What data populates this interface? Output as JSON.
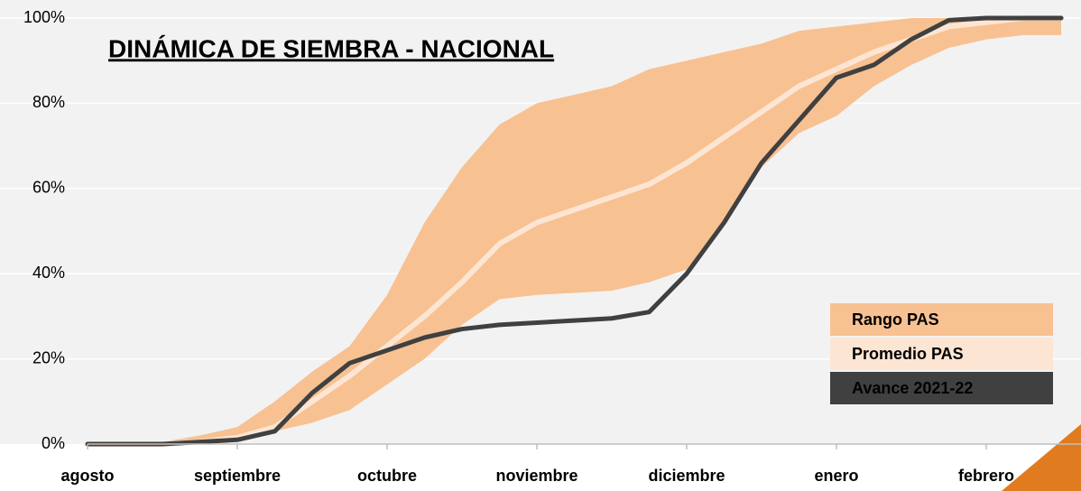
{
  "chart_data": {
    "type": "line",
    "title": "DINÁMICA DE SIEMBRA - NACIONAL",
    "categories": [
      "agosto",
      null,
      null,
      null,
      "septiembre",
      null,
      null,
      null,
      "octubre",
      null,
      null,
      null,
      "noviembre",
      null,
      null,
      null,
      "diciembre",
      null,
      null,
      null,
      "enero",
      null,
      null,
      null,
      "febrero",
      null,
      null
    ],
    "series": [
      {
        "name": "Rango PAS",
        "color": "#f8c192",
        "low": [
          0,
          0,
          0,
          0.5,
          1,
          3,
          5,
          8,
          14,
          20,
          28,
          34,
          35,
          35.5,
          36,
          38,
          41,
          52,
          65,
          73,
          77,
          84,
          89,
          93,
          95,
          96,
          96
        ],
        "high": [
          0,
          0,
          0.5,
          2,
          4,
          10,
          17,
          23,
          35,
          52,
          65,
          75,
          80,
          82,
          84,
          88,
          90,
          92,
          94,
          97,
          98,
          99,
          100,
          100,
          100,
          100,
          100
        ]
      },
      {
        "name": "Promedio PAS",
        "color": "#fde5d3",
        "values": [
          0,
          0,
          0,
          0.5,
          1.5,
          4,
          10,
          16,
          23,
          30,
          38,
          47,
          52,
          55,
          58,
          61,
          66,
          72,
          78,
          84,
          88,
          92,
          95,
          98,
          99,
          100,
          100
        ]
      },
      {
        "name": "Avance 2021-22",
        "color": "#404040",
        "values": [
          0,
          0,
          0,
          0.5,
          1,
          3,
          12,
          19,
          22,
          25,
          27,
          28,
          28.5,
          29,
          29.5,
          31,
          40,
          52,
          66,
          76,
          86,
          89,
          95,
          99.5,
          100,
          100,
          100
        ]
      }
    ],
    "ylim": [
      0,
      100
    ],
    "yticks": [
      {
        "value": 0,
        "label": "0%"
      },
      {
        "value": 20,
        "label": "20%"
      },
      {
        "value": 40,
        "label": "40%"
      },
      {
        "value": 60,
        "label": "60%"
      },
      {
        "value": 80,
        "label": "80%"
      },
      {
        "value": 100,
        "label": "100%"
      }
    ],
    "grid": true
  }
}
